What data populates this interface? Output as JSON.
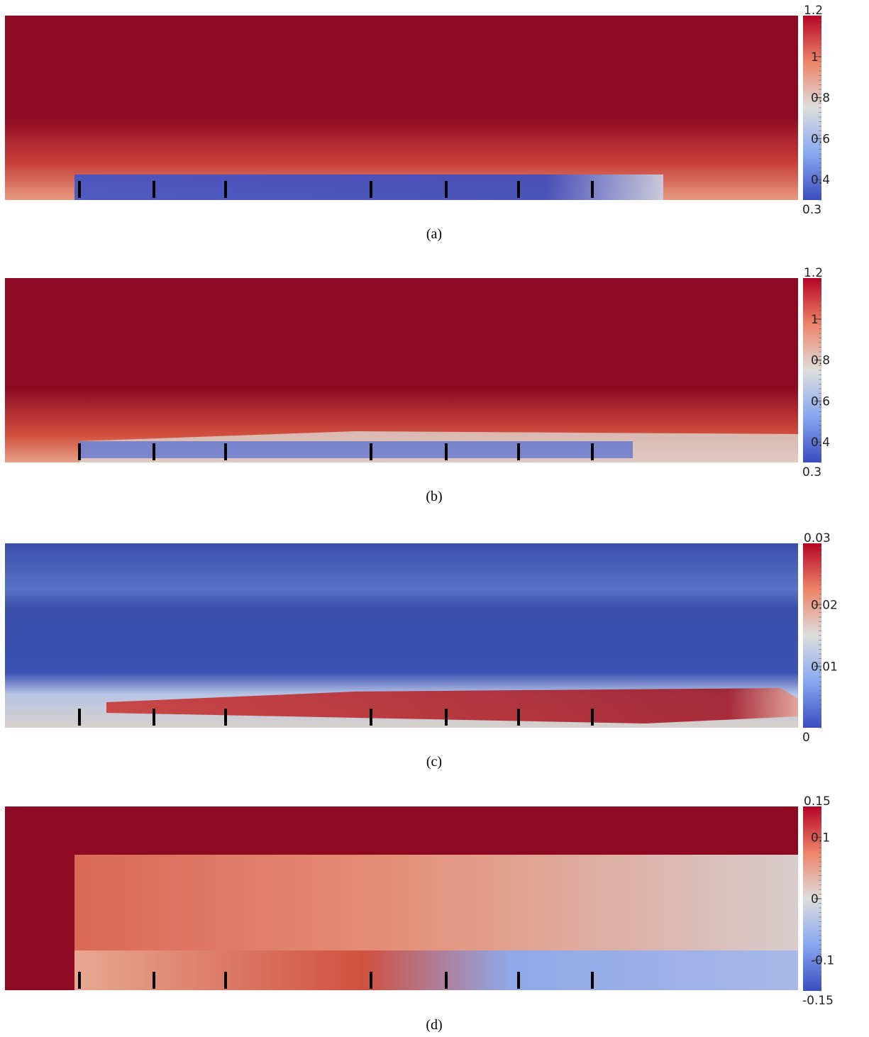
{
  "panels": [
    {
      "caption": "(a)",
      "colorbar": {
        "range": [
          0.3,
          1.2
        ],
        "ticks": [
          0.4,
          0.6,
          0.8,
          1
        ]
      }
    },
    {
      "caption": "(b)",
      "colorbar": {
        "range": [
          0.3,
          1.2
        ],
        "ticks": [
          0.4,
          0.6,
          0.8,
          1
        ]
      }
    },
    {
      "caption": "(c)",
      "colorbar": {
        "range": [
          0,
          0.03
        ],
        "ticks": [
          0.01,
          0.02
        ]
      }
    },
    {
      "caption": "(d)",
      "colorbar": {
        "range": [
          -0.15,
          0.15
        ],
        "ticks": [
          -0.1,
          0,
          0.1
        ]
      }
    }
  ]
}
